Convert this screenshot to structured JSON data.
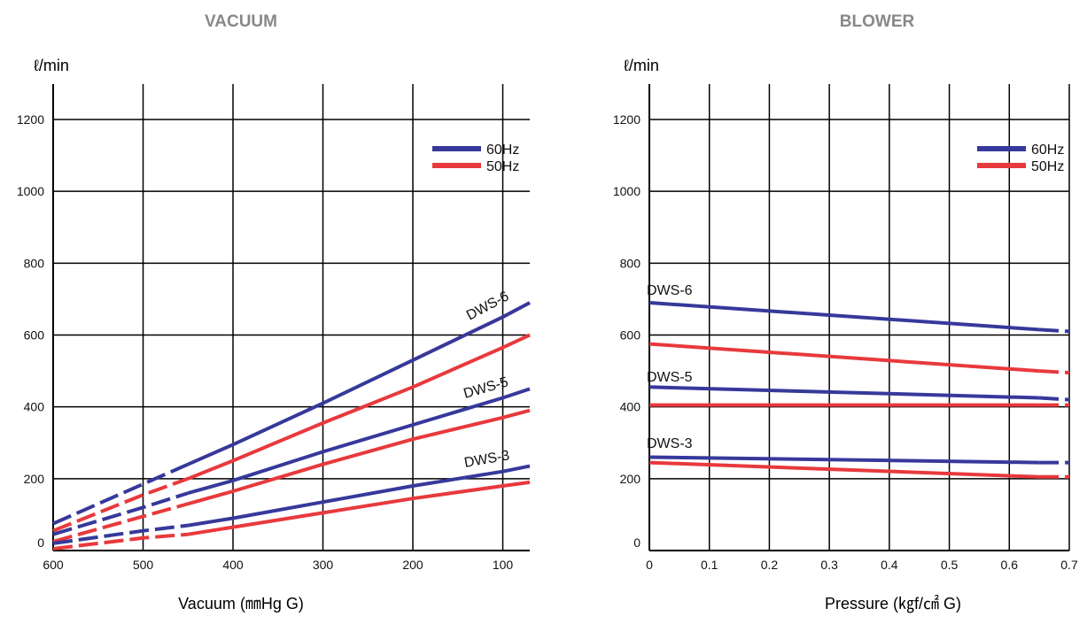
{
  "colors": {
    "hz60": "#36399a",
    "hz50": "#e8393c"
  },
  "chart_data": [
    {
      "type": "line",
      "title": "VACUUM",
      "ylabel": "ℓ/min",
      "xlabel": "Vacuum (㎜Hg G)",
      "xlim": [
        600,
        70
      ],
      "ylim": [
        0,
        1250
      ],
      "x_ticks": [
        "600",
        "500",
        "400",
        "300",
        "200",
        "100"
      ],
      "y_ticks": [
        "0",
        "200",
        "400",
        "600",
        "800",
        "1000",
        "1200"
      ],
      "legend": {
        "position": "top-right",
        "entries": [
          "60Hz",
          "50Hz"
        ]
      },
      "grid": true,
      "series": [
        {
          "name": "DWS-6",
          "hz": "60Hz",
          "label": "DWS-6",
          "x": [
            600,
            500,
            450,
            400,
            300,
            200,
            100,
            70
          ],
          "y": [
            75,
            185,
            240,
            295,
            410,
            530,
            650,
            690
          ]
        },
        {
          "name": "DWS-6",
          "hz": "50Hz",
          "x": [
            600,
            500,
            450,
            400,
            300,
            200,
            100,
            70
          ],
          "y": [
            55,
            155,
            200,
            250,
            355,
            455,
            565,
            600
          ]
        },
        {
          "name": "DWS-5",
          "hz": "60Hz",
          "label": "DWS-5",
          "x": [
            600,
            500,
            450,
            400,
            300,
            200,
            100,
            70
          ],
          "y": [
            45,
            120,
            160,
            195,
            275,
            350,
            425,
            450
          ]
        },
        {
          "name": "DWS-5",
          "hz": "50Hz",
          "x": [
            600,
            500,
            450,
            400,
            300,
            200,
            100,
            70
          ],
          "y": [
            25,
            95,
            130,
            165,
            240,
            310,
            370,
            390
          ]
        },
        {
          "name": "DWS-3",
          "hz": "60Hz",
          "label": "DWS-3",
          "x": [
            600,
            500,
            450,
            400,
            300,
            200,
            100,
            70
          ],
          "y": [
            20,
            55,
            70,
            90,
            135,
            180,
            220,
            235
          ]
        },
        {
          "name": "DWS-3",
          "hz": "50Hz",
          "x": [
            600,
            500,
            450,
            400,
            300,
            200,
            100,
            70
          ],
          "y": [
            5,
            35,
            45,
            65,
            105,
            145,
            180,
            190
          ]
        }
      ]
    },
    {
      "type": "line",
      "title": "BLOWER",
      "ylabel": "ℓ/min",
      "xlabel": "Pressure (㎏f/㎠ G)",
      "xlim": [
        0,
        0.7
      ],
      "ylim": [
        0,
        1250
      ],
      "x_ticks": [
        "0",
        "0.1",
        "0.2",
        "0.3",
        "0.4",
        "0.5",
        "0.6",
        "0.7"
      ],
      "y_ticks": [
        "0",
        "200",
        "400",
        "600",
        "800",
        "1000",
        "1200"
      ],
      "legend": {
        "position": "top-right",
        "entries": [
          "60Hz",
          "50Hz"
        ]
      },
      "grid": true,
      "series": [
        {
          "name": "DWS-6",
          "hz": "60Hz",
          "label": "DWS-6",
          "x": [
            0,
            0.65,
            0.7
          ],
          "y": [
            690,
            615,
            610
          ]
        },
        {
          "name": "DWS-6",
          "hz": "50Hz",
          "x": [
            0,
            0.65,
            0.7
          ],
          "y": [
            575,
            500,
            495
          ]
        },
        {
          "name": "DWS-5",
          "hz": "60Hz",
          "label": "DWS-5",
          "x": [
            0,
            0.65,
            0.7
          ],
          "y": [
            455,
            425,
            420
          ]
        },
        {
          "name": "DWS-5",
          "hz": "50Hz",
          "x": [
            0,
            0.65,
            0.7
          ],
          "y": [
            405,
            405,
            405
          ]
        },
        {
          "name": "DWS-3",
          "hz": "60Hz",
          "label": "DWS-3",
          "x": [
            0,
            0.65,
            0.7
          ],
          "y": [
            260,
            245,
            245
          ]
        },
        {
          "name": "DWS-3",
          "hz": "50Hz",
          "x": [
            0,
            0.65,
            0.7
          ],
          "y": [
            245,
            205,
            205
          ]
        }
      ]
    }
  ]
}
